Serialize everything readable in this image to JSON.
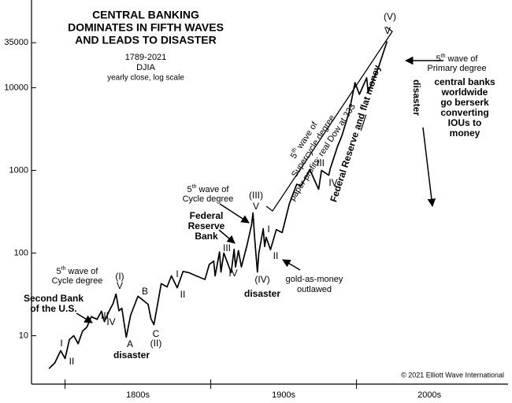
{
  "chart_data": {
    "type": "line",
    "title": [
      "CENTRAL BANKING",
      "DOMINATES IN FIFTH WAVES",
      "AND LEADS TO DISASTER"
    ],
    "subtitle": [
      "1789-2021",
      "DJIA",
      "yearly close, log scale"
    ],
    "x": [
      1789,
      1793,
      1797,
      1800,
      1803,
      1806,
      1809,
      1812,
      1815,
      1818,
      1822,
      1825,
      1827,
      1830,
      1833,
      1835,
      1837,
      1839,
      1842,
      1845,
      1850,
      1853,
      1857,
      1859,
      1861,
      1864,
      1866,
      1870,
      1873,
      1877,
      1881,
      1885,
      1890,
      1896,
      1899,
      1902,
      1903,
      1906,
      1907,
      1909,
      1914,
      1916,
      1917,
      1919,
      1921,
      1925,
      1928,
      1929,
      1930,
      1932,
      1933,
      1936,
      1937,
      1938,
      1941,
      1945,
      1949,
      1954,
      1959,
      1962,
      1966,
      1968,
      1974,
      1976,
      1981,
      1982,
      1987,
      1990,
      1995,
      1999,
      2002,
      2007,
      2008,
      2012,
      2015,
      2019,
      2021
    ],
    "values": [
      4,
      4.7,
      6.6,
      5.3,
      9,
      10,
      8,
      11.4,
      12.7,
      17,
      15.8,
      19.8,
      14.8,
      19.5,
      24.6,
      32,
      20,
      21.5,
      9.6,
      17.7,
      30,
      27.4,
      24,
      16,
      13.6,
      27,
      42.6,
      39,
      53,
      38,
      60,
      58,
      53,
      48,
      73,
      80,
      53,
      103,
      59,
      100,
      58,
      111,
      68,
      107,
      68,
      127,
      220,
      306,
      160,
      59,
      100,
      197,
      120,
      155,
      110,
      192,
      177,
      400,
      680,
      650,
      875,
      1020,
      590,
      1000,
      875,
      1050,
      1950,
      2630,
      5100,
      11500,
      8300,
      13200,
      8800,
      13100,
      17400,
      28500,
      36300
    ],
    "color": "#000000",
    "log_y": true,
    "ylim": [
      2.6,
      115000
    ],
    "yticks": [
      10,
      100,
      1000,
      10000,
      35000
    ],
    "xlim": [
      1777,
      2104
    ],
    "xticks": [
      {
        "value": 1800,
        "label": "1800s"
      },
      {
        "value": 1900,
        "label": "1900s"
      },
      {
        "value": 2000,
        "label": "2000s"
      }
    ],
    "wave_labels": [
      "I",
      "II",
      "III",
      "IV",
      "(I)",
      "V",
      "A",
      "B",
      "C",
      "(II)",
      "I",
      "II",
      "III",
      "IV",
      "V",
      "(III)",
      "(IV)",
      "I",
      "II",
      "III",
      "IV",
      "V",
      "(V)"
    ],
    "annotations": [
      {
        "lines": [
          "5th wave of",
          "Cycle degree"
        ],
        "bold": false
      },
      {
        "lines": [
          "Second Bank",
          "of the U.S."
        ],
        "bold": true
      },
      {
        "lines": [
          "disaster"
        ],
        "bold": true
      },
      {
        "lines": [
          "5th wave of",
          "Cycle degree"
        ],
        "bold": false
      },
      {
        "lines": [
          "Federal",
          "Reserve",
          "Bank"
        ],
        "bold": true
      },
      {
        "lines": [
          "disaster"
        ],
        "bold": true
      },
      {
        "lines": [
          "gold-as-money",
          "outlawed"
        ],
        "bold": false
      },
      {
        "lines": [
          "5th wave of",
          "Supercycle degree",
          "paper profits: real Dow at 333"
        ],
        "bold": false
      },
      {
        "parts": [
          "Federal Reserve",
          "and",
          "flat money"
        ],
        "bold": true,
        "underline": 1
      },
      {
        "lines": [
          "disaster"
        ],
        "bold": true
      },
      {
        "lines": [
          "5th wave of",
          "Primary degree"
        ],
        "bold": false
      },
      {
        "lines": [
          "central banks",
          "worldwide",
          "go berserk",
          "converting",
          "IOUs to",
          "money"
        ],
        "bold": true
      }
    ],
    "copyright": "© 2021 Elliott Wave International"
  }
}
